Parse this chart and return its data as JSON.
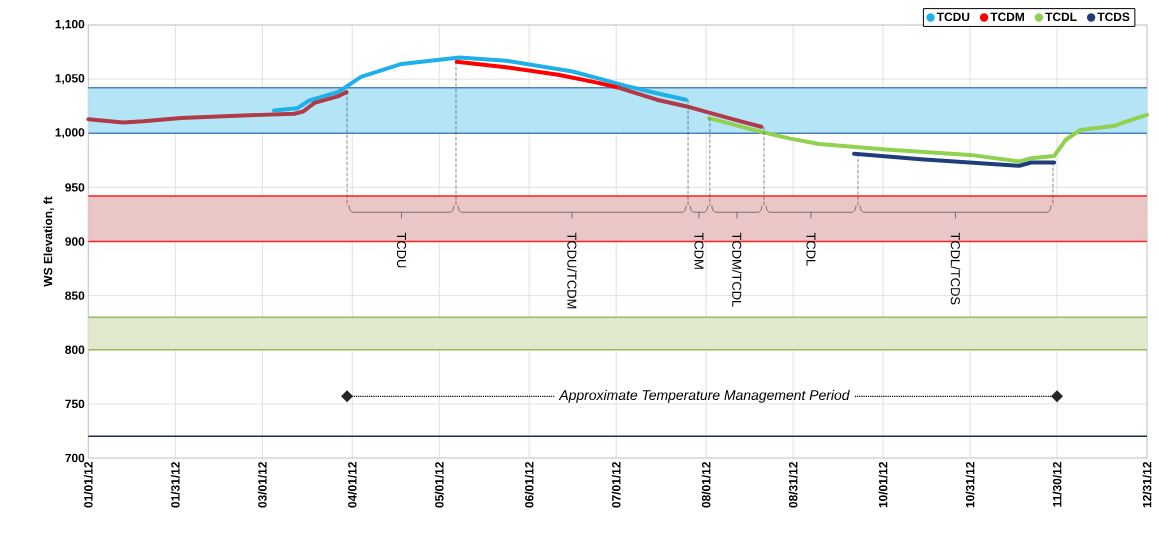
{
  "chart_data": {
    "type": "line",
    "ylabel": "WS Elevation, ft",
    "xlim": [
      "2012-01-01",
      "2012-12-31"
    ],
    "xticks": [
      {
        "value": "2012-01-01",
        "label": "01/01/12"
      },
      {
        "value": "2012-01-31",
        "label": "01/31/12"
      },
      {
        "value": "2012-03-01",
        "label": "03/01/12"
      },
      {
        "value": "2012-04-01",
        "label": "04/01/12"
      },
      {
        "value": "2012-05-01",
        "label": "05/01/12"
      },
      {
        "value": "2012-06-01",
        "label": "06/01/12"
      },
      {
        "value": "2012-07-01",
        "label": "07/01/12"
      },
      {
        "value": "2012-08-01",
        "label": "08/01/12"
      },
      {
        "value": "2012-08-31",
        "label": "08/31/12"
      },
      {
        "value": "2012-10-01",
        "label": "10/01/12"
      },
      {
        "value": "2012-10-31",
        "label": "10/31/12"
      },
      {
        "value": "2012-11-30",
        "label": "11/30/12"
      },
      {
        "value": "2012-12-31",
        "label": "12/31/12"
      }
    ],
    "ylim": [
      700,
      1100
    ],
    "yticks": [
      700,
      750,
      800,
      850,
      900,
      950,
      {
        "value": 1000,
        "label": "1,000"
      },
      {
        "value": 1050,
        "label": "1,050"
      },
      {
        "value": 1100,
        "label": "1,100"
      }
    ],
    "grid": true,
    "legend": "top right",
    "series": [
      {
        "name": "TCDU",
        "color": "#1fb0e8",
        "x": [
          "2012-03-05",
          "2012-03-13",
          "2012-03-17",
          "2012-03-27",
          "2012-03-30",
          "2012-04-04",
          "2012-04-11",
          "2012-04-18",
          "2012-04-28",
          "2012-05-08",
          "2012-05-24",
          "2012-06-16",
          "2012-07-04",
          "2012-07-15",
          "2012-07-25"
        ],
        "values": [
          1021,
          1023,
          1030,
          1038,
          1043,
          1052,
          1058,
          1064,
          1067,
          1070,
          1067,
          1057,
          1044,
          1037,
          1031
        ]
      },
      {
        "name": "TCDM",
        "color": "#ff0000",
        "x": [
          "2012-05-07",
          "2012-05-24",
          "2012-06-11",
          "2012-06-24",
          "2012-07-02"
        ],
        "values": [
          1066,
          1061,
          1054,
          1047,
          1042
        ]
      },
      {
        "name": "TCDL",
        "color": "#92d050",
        "x": [
          "2012-08-02",
          "2012-08-19",
          "2012-08-30",
          "2012-09-09",
          "2012-10-02",
          "2012-10-31",
          "2012-11-17",
          "2012-11-21",
          "2012-11-29",
          "2012-12-03",
          "2012-12-08",
          "2012-12-20",
          "2012-12-24",
          "2012-12-31"
        ],
        "values": [
          1014,
          1002,
          995,
          990,
          985,
          980,
          974,
          977,
          979,
          994,
          1003,
          1007,
          1011,
          1017
        ]
      },
      {
        "color": "#b03a48",
        "x": [
          "2012-01-01",
          "2012-01-13",
          "2012-01-20",
          "2012-02-02",
          "2012-02-19",
          "2012-03-12",
          "2012-03-15",
          "2012-03-19",
          "2012-03-23",
          "2012-03-27",
          "2012-03-30",
          "2012-05-15",
          "2012-07-02",
          "2012-07-15",
          "2012-07-25",
          "2012-08-02",
          "2012-08-13",
          "2012-08-20"
        ],
        "values": [
          1013,
          1010,
          1011,
          1014,
          1016,
          1018,
          1020,
          1028,
          1031,
          1034,
          1038,
          null,
          1042,
          1031,
          1025,
          1019,
          1011,
          1006
        ]
      },
      {
        "name": "TCDS",
        "color": "#1f3d7a",
        "x": [
          "2012-09-21",
          "2012-10-14",
          "2012-11-17",
          "2012-11-21",
          "2012-11-29"
        ],
        "values": [
          981,
          976,
          970,
          973,
          973
        ]
      }
    ],
    "bands": [
      {
        "axis": "y",
        "from": 1000,
        "to": 1042,
        "color": "#b3e5f7"
      },
      {
        "axis": "y",
        "from": 900,
        "to": 942,
        "color": "#eac6c6"
      },
      {
        "axis": "y",
        "from": 800,
        "to": 830,
        "color": "#e0e9ce"
      }
    ],
    "ref_lines": [
      {
        "axis": "y",
        "value": 1042,
        "color": "#4f81bd"
      },
      {
        "axis": "y",
        "value": 1000,
        "color": "#4f81bd"
      },
      {
        "axis": "y",
        "value": 942,
        "color": "#ff2020"
      },
      {
        "axis": "y",
        "value": 900,
        "color": "#ff2020"
      },
      {
        "axis": "y",
        "value": 830,
        "color": "#9bbb59"
      },
      {
        "axis": "y",
        "value": 800,
        "color": "#9bbb59"
      },
      {
        "axis": "y",
        "value": 720,
        "color": "#1f2d4d"
      }
    ],
    "annotations": [
      "TCDU",
      "TCDU/TCDM",
      "TCDM",
      "TCDM/TCDL",
      "TCDL",
      "TCDL/TCDS",
      "Approximate Temperature Management Period"
    ]
  }
}
